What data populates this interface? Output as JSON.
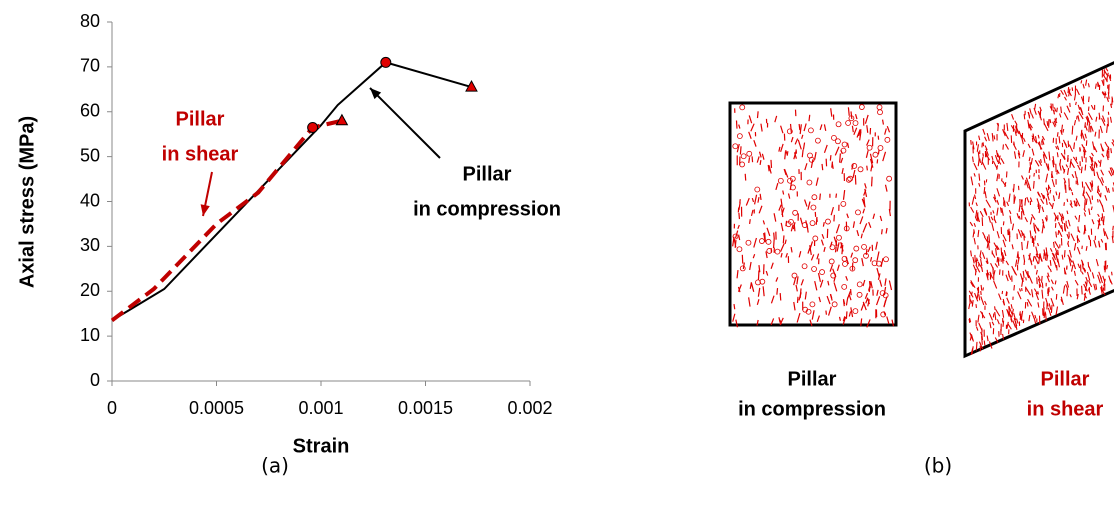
{
  "chart_data": {
    "type": "line",
    "xlabel": "Strain",
    "ylabel": "Axial stress (MPa)",
    "xlim": [
      0,
      0.002
    ],
    "xticks": [
      0,
      0.0005,
      0.001,
      0.0015,
      0.002
    ],
    "ylim": [
      0,
      80
    ],
    "yticks": [
      0,
      10,
      20,
      30,
      40,
      50,
      60,
      70,
      80
    ],
    "series": [
      {
        "color": "#000000",
        "dashed": false,
        "x": [
          0,
          0.00025,
          0.001,
          0.00108,
          0.00131,
          0.00172
        ],
        "values": [
          13.5,
          20.5,
          57,
          61.5,
          71,
          65.5
        ]
      },
      {
        "color": "#c00000",
        "dashed": true,
        "x": [
          0,
          0.0002,
          0.0005,
          0.0007,
          0.00096,
          0.0011
        ],
        "values": [
          13.5,
          20.5,
          35,
          42,
          56.5,
          58
        ]
      }
    ],
    "annotations": [
      {
        "lines": [
          "Pillar",
          "in shear"
        ],
        "color": "#c00000"
      },
      {
        "lines": [
          "Pillar",
          "in compression"
        ],
        "color": "#000000"
      }
    ]
  },
  "diagram": {
    "panels": [
      {
        "lines": [
          "Pillar",
          "in compression"
        ],
        "color": "#000000"
      },
      {
        "lines": [
          "Pillar",
          "in shear"
        ],
        "color": "#c00000"
      }
    ]
  },
  "captions": [
    "(a)",
    "(b)"
  ]
}
